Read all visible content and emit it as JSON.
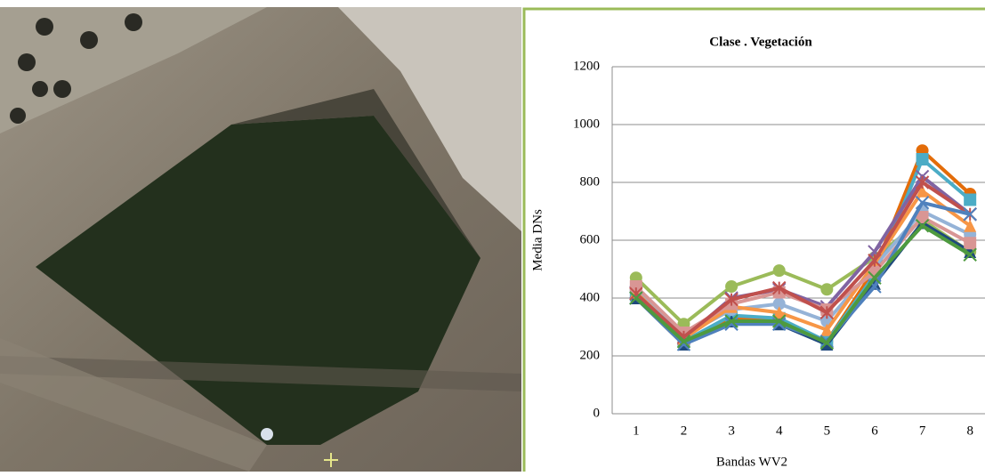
{
  "chart_data": {
    "type": "line",
    "title": "Clase . Vegetación",
    "x_label": "Bandas WV2",
    "y_label": "Media  DNs",
    "categories": [
      "1",
      "2",
      "3",
      "4",
      "5",
      "6",
      "7",
      "8"
    ],
    "ylim": [
      0,
      1200
    ],
    "yticks": [
      0,
      200,
      400,
      600,
      800,
      1000,
      1200
    ],
    "grid": true,
    "series": [
      {
        "color": "#e36c09",
        "marker": "circle",
        "values": [
          400,
          240,
          330,
          320,
          250,
          500,
          910,
          760
        ]
      },
      {
        "color": "#9bbb59",
        "marker": "circle",
        "values": [
          470,
          310,
          440,
          495,
          430,
          540,
          670,
          560
        ]
      },
      {
        "color": "#4bacc6",
        "marker": "square",
        "values": [
          410,
          250,
          340,
          330,
          250,
          480,
          880,
          740
        ]
      },
      {
        "color": "#8064a2",
        "marker": "x",
        "values": [
          420,
          260,
          400,
          430,
          370,
          560,
          820,
          690
        ]
      },
      {
        "color": "#1f497d",
        "marker": "triangle",
        "values": [
          400,
          240,
          320,
          310,
          240,
          450,
          660,
          560
        ]
      },
      {
        "color": "#95b3d7",
        "marker": "circle",
        "values": [
          430,
          270,
          360,
          380,
          320,
          510,
          700,
          620
        ]
      },
      {
        "color": "#f79646",
        "marker": "triangle",
        "values": [
          420,
          260,
          370,
          350,
          290,
          520,
          770,
          650
        ]
      },
      {
        "color": "#d99694",
        "marker": "square",
        "values": [
          440,
          280,
          380,
          420,
          360,
          490,
          680,
          590
        ]
      },
      {
        "color": "#c0504d",
        "marker": "star",
        "values": [
          415,
          265,
          395,
          435,
          350,
          530,
          800,
          690
        ]
      },
      {
        "color": "#4f81bd",
        "marker": "x",
        "values": [
          400,
          240,
          310,
          310,
          250,
          440,
          730,
          690
        ]
      },
      {
        "color": "#4e9a3f",
        "marker": "x",
        "values": [
          400,
          250,
          320,
          320,
          245,
          470,
          650,
          550
        ]
      }
    ]
  }
}
